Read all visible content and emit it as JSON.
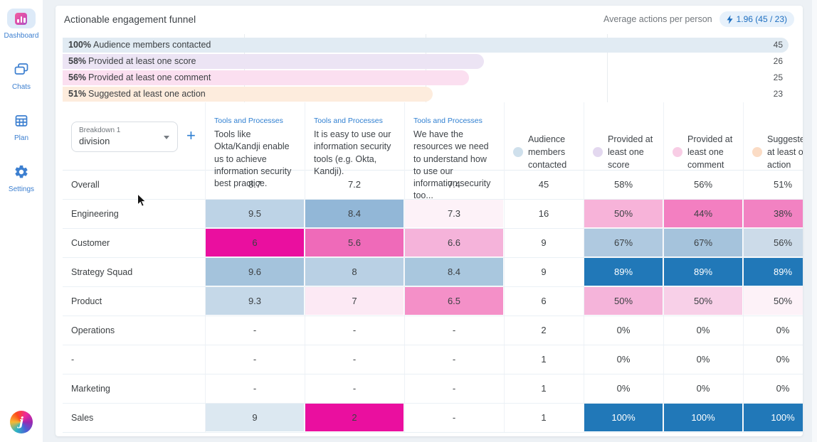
{
  "sidebar": {
    "items": [
      {
        "label": "Dashboard",
        "active": true
      },
      {
        "label": "Chats",
        "active": false
      },
      {
        "label": "Plan",
        "active": false
      },
      {
        "label": "Settings",
        "active": false
      }
    ],
    "logo_letter": "j"
  },
  "header": {
    "title": "Actionable engagement funnel",
    "average_label": "Average actions per person",
    "average_value": "1.96 (45 / 23)"
  },
  "chart_data": {
    "type": "bar",
    "orientation": "horizontal",
    "title": "Actionable engagement funnel",
    "categories": [
      "Audience members contacted",
      "Provided at least one score",
      "Provided at least one comment",
      "Suggested at least one action"
    ],
    "percents": [
      100,
      58,
      56,
      51
    ],
    "counts": [
      45,
      26,
      25,
      23
    ],
    "bar_colors": [
      "#e1ebf3",
      "#ece4f4",
      "#fbdff0",
      "#fdecdd"
    ],
    "gridlines_percent": [
      25,
      50,
      75
    ],
    "xlim": [
      0,
      100
    ],
    "legend": "none"
  },
  "table": {
    "breakdown": {
      "label": "Breakdown 1",
      "value": "division"
    },
    "add_button": "+",
    "question_columns": [
      {
        "category": "Tools and Processes",
        "text": "Tools like Okta/Kandji enable us to achieve information security best practice."
      },
      {
        "category": "Tools and Processes",
        "text": "It is easy to use our information security tools (e.g. Okta, Kandji)."
      },
      {
        "category": "Tools and Processes",
        "text": "We have the resources we need to understand how to use our information security too..."
      }
    ],
    "metric_columns": [
      {
        "label": "Audience members contacted",
        "dot_color": "#cfe0ec"
      },
      {
        "label": "Provided at least one score",
        "dot_color": "#e3d8ef"
      },
      {
        "label": "Provided at least one comment",
        "dot_color": "#f8cde5"
      },
      {
        "label": "Suggested at least one action",
        "dot_color": "#fbdcc5"
      }
    ],
    "rows": [
      {
        "name": "Overall",
        "scores": [
          {
            "v": "8.7"
          },
          {
            "v": "7.2"
          },
          {
            "v": "7.4"
          }
        ],
        "audience": "45",
        "metrics": [
          {
            "v": "58%"
          },
          {
            "v": "56%"
          },
          {
            "v": "51%"
          }
        ]
      },
      {
        "name": "Engineering",
        "scores": [
          {
            "v": "9.5",
            "bg": "#bdd3e6"
          },
          {
            "v": "8.4",
            "bg": "#92b7d7"
          },
          {
            "v": "7.3",
            "bg": "#fdf2f8"
          }
        ],
        "audience": "16",
        "metrics": [
          {
            "v": "50%",
            "bg": "#f7b3d9"
          },
          {
            "v": "44%",
            "bg": "#f37fc1"
          },
          {
            "v": "38%",
            "bg": "#f282c2"
          }
        ]
      },
      {
        "name": "Customer",
        "scores": [
          {
            "v": "6",
            "bg": "#ea0f9f"
          },
          {
            "v": "5.6",
            "bg": "#ef6ab9"
          },
          {
            "v": "6.6",
            "bg": "#f5b3da"
          }
        ],
        "audience": "9",
        "metrics": [
          {
            "v": "67%",
            "bg": "#afc9e0"
          },
          {
            "v": "67%",
            "bg": "#a5c3dc"
          },
          {
            "v": "56%",
            "bg": "#ccdbe9"
          }
        ]
      },
      {
        "name": "Strategy Squad",
        "scores": [
          {
            "v": "9.6",
            "bg": "#a4c3dc"
          },
          {
            "v": "8",
            "bg": "#b9d0e4"
          },
          {
            "v": "8.4",
            "bg": "#a9c7de"
          }
        ],
        "audience": "9",
        "metrics": [
          {
            "v": "89%",
            "bg": "#2178b8",
            "fg": "#ffffff"
          },
          {
            "v": "89%",
            "bg": "#2178b8",
            "fg": "#ffffff"
          },
          {
            "v": "89%",
            "bg": "#2178b8",
            "fg": "#ffffff"
          }
        ]
      },
      {
        "name": "Product",
        "scores": [
          {
            "v": "9.3",
            "bg": "#c5d8e8"
          },
          {
            "v": "7",
            "bg": "#fce9f4"
          },
          {
            "v": "6.5",
            "bg": "#f490c8"
          }
        ],
        "audience": "6",
        "metrics": [
          {
            "v": "50%",
            "bg": "#f5b4da"
          },
          {
            "v": "50%",
            "bg": "#f8d0e8"
          },
          {
            "v": "50%",
            "bg": "#fdf2f8"
          }
        ]
      },
      {
        "name": "Operations",
        "scores": [
          {
            "v": "-"
          },
          {
            "v": "-"
          },
          {
            "v": "-"
          }
        ],
        "audience": "2",
        "metrics": [
          {
            "v": "0%"
          },
          {
            "v": "0%"
          },
          {
            "v": "0%"
          }
        ]
      },
      {
        "name": "-",
        "scores": [
          {
            "v": "-"
          },
          {
            "v": "-"
          },
          {
            "v": "-"
          }
        ],
        "audience": "1",
        "metrics": [
          {
            "v": "0%"
          },
          {
            "v": "0%"
          },
          {
            "v": "0%"
          }
        ]
      },
      {
        "name": "Marketing",
        "scores": [
          {
            "v": "-"
          },
          {
            "v": "-"
          },
          {
            "v": "-"
          }
        ],
        "audience": "1",
        "metrics": [
          {
            "v": "0%"
          },
          {
            "v": "0%"
          },
          {
            "v": "0%"
          }
        ]
      },
      {
        "name": "Sales",
        "scores": [
          {
            "v": "9",
            "bg": "#dce8f1"
          },
          {
            "v": "2",
            "bg": "#ea0f9f"
          },
          {
            "v": "-"
          }
        ],
        "audience": "1",
        "metrics": [
          {
            "v": "100%",
            "bg": "#2178b8",
            "fg": "#ffffff"
          },
          {
            "v": "100%",
            "bg": "#2178b8",
            "fg": "#ffffff"
          },
          {
            "v": "100%",
            "bg": "#2178b8",
            "fg": "#ffffff"
          }
        ]
      }
    ]
  }
}
